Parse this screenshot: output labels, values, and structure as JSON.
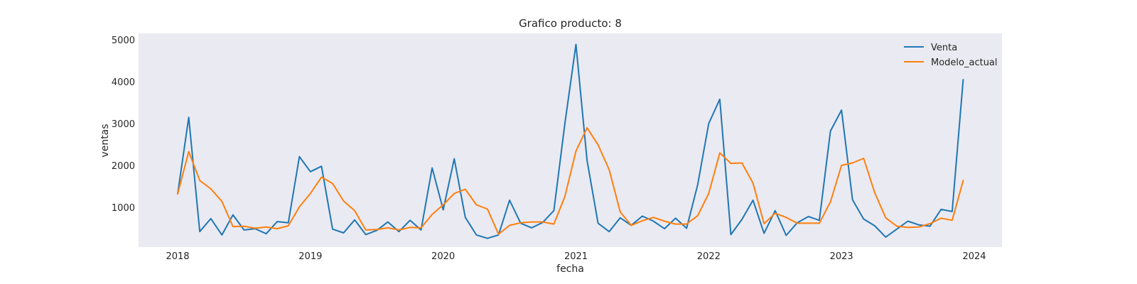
{
  "chart_data": {
    "type": "line",
    "title": "Grafico producto: 8",
    "xlabel": "fecha",
    "ylabel": "ventas",
    "x_start": "2018-01",
    "x_ticks": [
      "2018",
      "2019",
      "2020",
      "2021",
      "2022",
      "2023",
      "2024"
    ],
    "y_ticks": [
      1000,
      2000,
      3000,
      4000,
      5000
    ],
    "ylim": [
      0,
      5100
    ],
    "grid": false,
    "background": "#eaeaf2",
    "legend_position": "top-right",
    "series": [
      {
        "name": "Venta",
        "color": "#1f77b4",
        "values": [
          1320,
          3150,
          420,
          730,
          340,
          820,
          460,
          490,
          370,
          660,
          630,
          2210,
          1850,
          1980,
          480,
          390,
          700,
          350,
          450,
          650,
          420,
          690,
          460,
          1940,
          940,
          2160,
          760,
          340,
          260,
          340,
          1170,
          620,
          510,
          640,
          920,
          3000,
          4890,
          2120,
          620,
          420,
          750,
          570,
          790,
          670,
          490,
          740,
          500,
          1540,
          3000,
          3580,
          350,
          710,
          1170,
          380,
          920,
          330,
          630,
          780,
          690,
          2820,
          3320,
          1180,
          720,
          560,
          290,
          480,
          670,
          580,
          550,
          950,
          900,
          4050
        ]
      },
      {
        "name": "Modelo_actual",
        "color": "#ff7f0e",
        "values": [
          1320,
          2330,
          1640,
          1440,
          1140,
          540,
          550,
          500,
          530,
          490,
          560,
          1010,
          1330,
          1720,
          1570,
          1150,
          920,
          460,
          470,
          510,
          460,
          520,
          510,
          830,
          1060,
          1330,
          1430,
          1060,
          960,
          360,
          570,
          630,
          650,
          650,
          600,
          1260,
          2340,
          2900,
          2490,
          1900,
          890,
          570,
          680,
          760,
          670,
          600,
          600,
          800,
          1330,
          2300,
          2050,
          2060,
          1580,
          610,
          860,
          760,
          620,
          620,
          620,
          1130,
          2000,
          2060,
          2170,
          1350,
          750,
          550,
          520,
          530,
          610,
          740,
          690,
          1640
        ]
      }
    ]
  }
}
